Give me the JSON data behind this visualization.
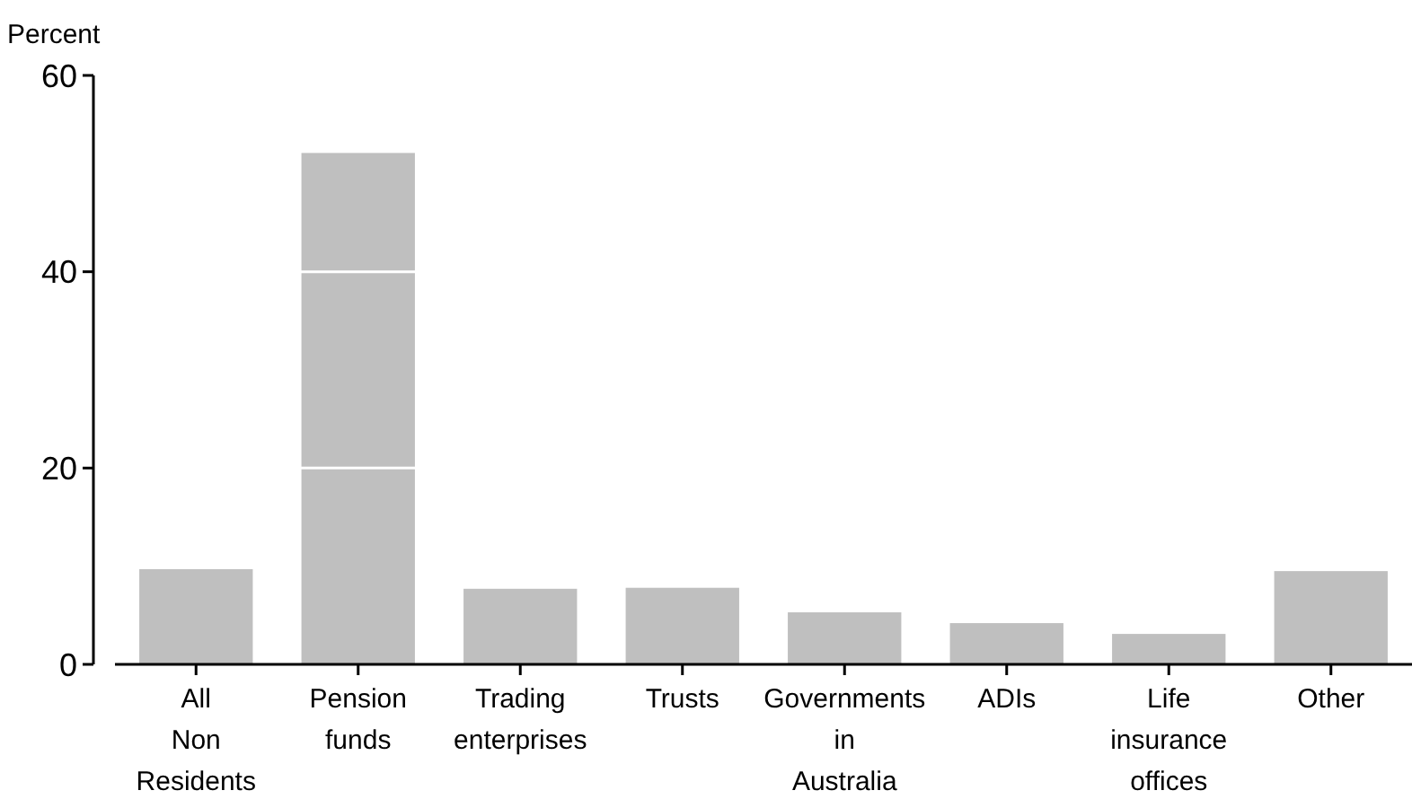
{
  "chart_data": {
    "type": "bar",
    "ylabel": "Percent",
    "categories": [
      "All Non Residents",
      "Pension funds",
      "Trading enterprises",
      "Trusts",
      "Governments in Australia",
      "ADIs",
      "Life insurance offices",
      "Other"
    ],
    "values": [
      9.7,
      52.1,
      7.7,
      7.8,
      5.3,
      4.2,
      3.1,
      9.5
    ],
    "color": "#bfbfbf",
    "ylim": [
      0,
      60
    ],
    "yticks": [
      0,
      20,
      40,
      60
    ],
    "grid": "y"
  }
}
